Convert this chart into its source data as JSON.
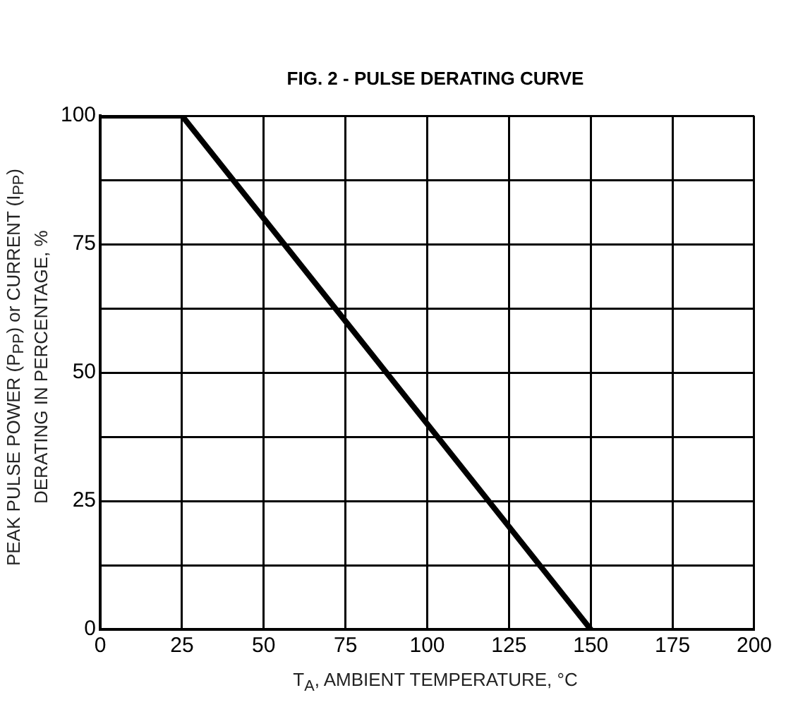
{
  "chart_data": {
    "type": "line",
    "title": "FIG. 2 - PULSE DERATING CURVE",
    "xlabel": "T$_{A}$, AMBIENT TEMPERATURE, °C",
    "ylabel": "PEAK PULSE POWER (P$_{PP}$) or CURRENT (I$_{PP}$)\nDERATING IN PERCENTAGE, %",
    "series": [
      {
        "color": "#000000",
        "x": [
          0,
          25,
          150
        ],
        "values": [
          100,
          100,
          0
        ]
      }
    ],
    "xlim": [
      0,
      200
    ],
    "xticks": [
      0,
      25,
      50,
      75,
      100,
      125,
      150,
      175,
      200
    ],
    "ylim": [
      0,
      100
    ],
    "yticks": [
      0,
      {
        "value": 12.5,
        "label": null
      },
      25,
      {
        "value": 37.5,
        "label": null
      },
      50,
      {
        "value": 62.5,
        "label": null
      },
      75,
      {
        "value": 87.5,
        "label": null
      },
      100
    ],
    "grid": true,
    "legend": false,
    "marker": "none",
    "line_style": "solid"
  }
}
